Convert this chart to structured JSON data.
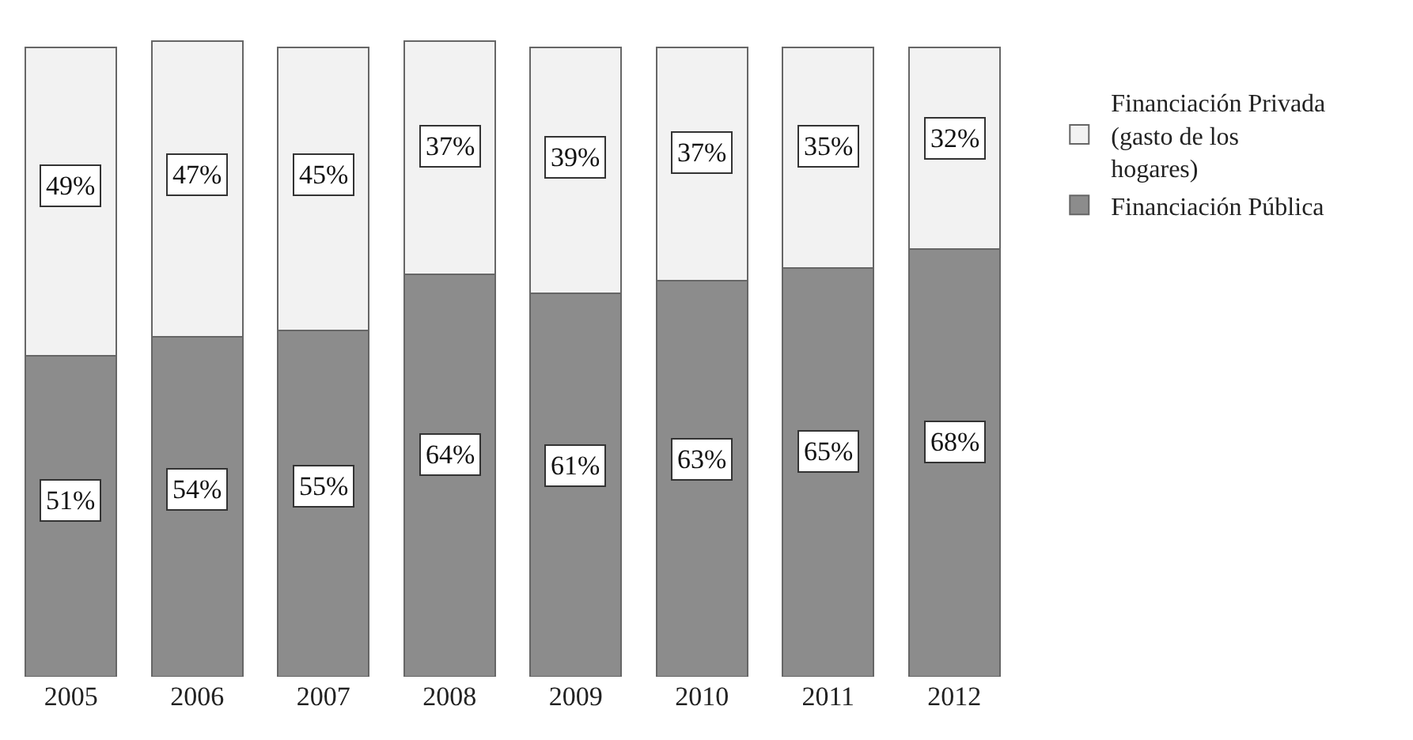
{
  "chart_data": {
    "type": "bar",
    "stacked": true,
    "categories": [
      "2005",
      "2006",
      "2007",
      "2008",
      "2009",
      "2010",
      "2011",
      "2012"
    ],
    "series": [
      {
        "name": "Financiación Pública",
        "color": "#8c8c8c",
        "values": [
          51,
          54,
          55,
          64,
          61,
          63,
          65,
          68
        ],
        "value_labels": [
          "51%",
          "54%",
          "55%",
          "64%",
          "61%",
          "63%",
          "65%",
          "68%"
        ]
      },
      {
        "name": "Financiación Privada (gasto de los hogares)",
        "color": "#f2f2f2",
        "values": [
          49,
          47,
          45,
          37,
          39,
          37,
          35,
          32
        ],
        "value_labels": [
          "49%",
          "47%",
          "45%",
          "37%",
          "39%",
          "37%",
          "35%",
          "32%"
        ]
      }
    ],
    "legend": "right"
  }
}
